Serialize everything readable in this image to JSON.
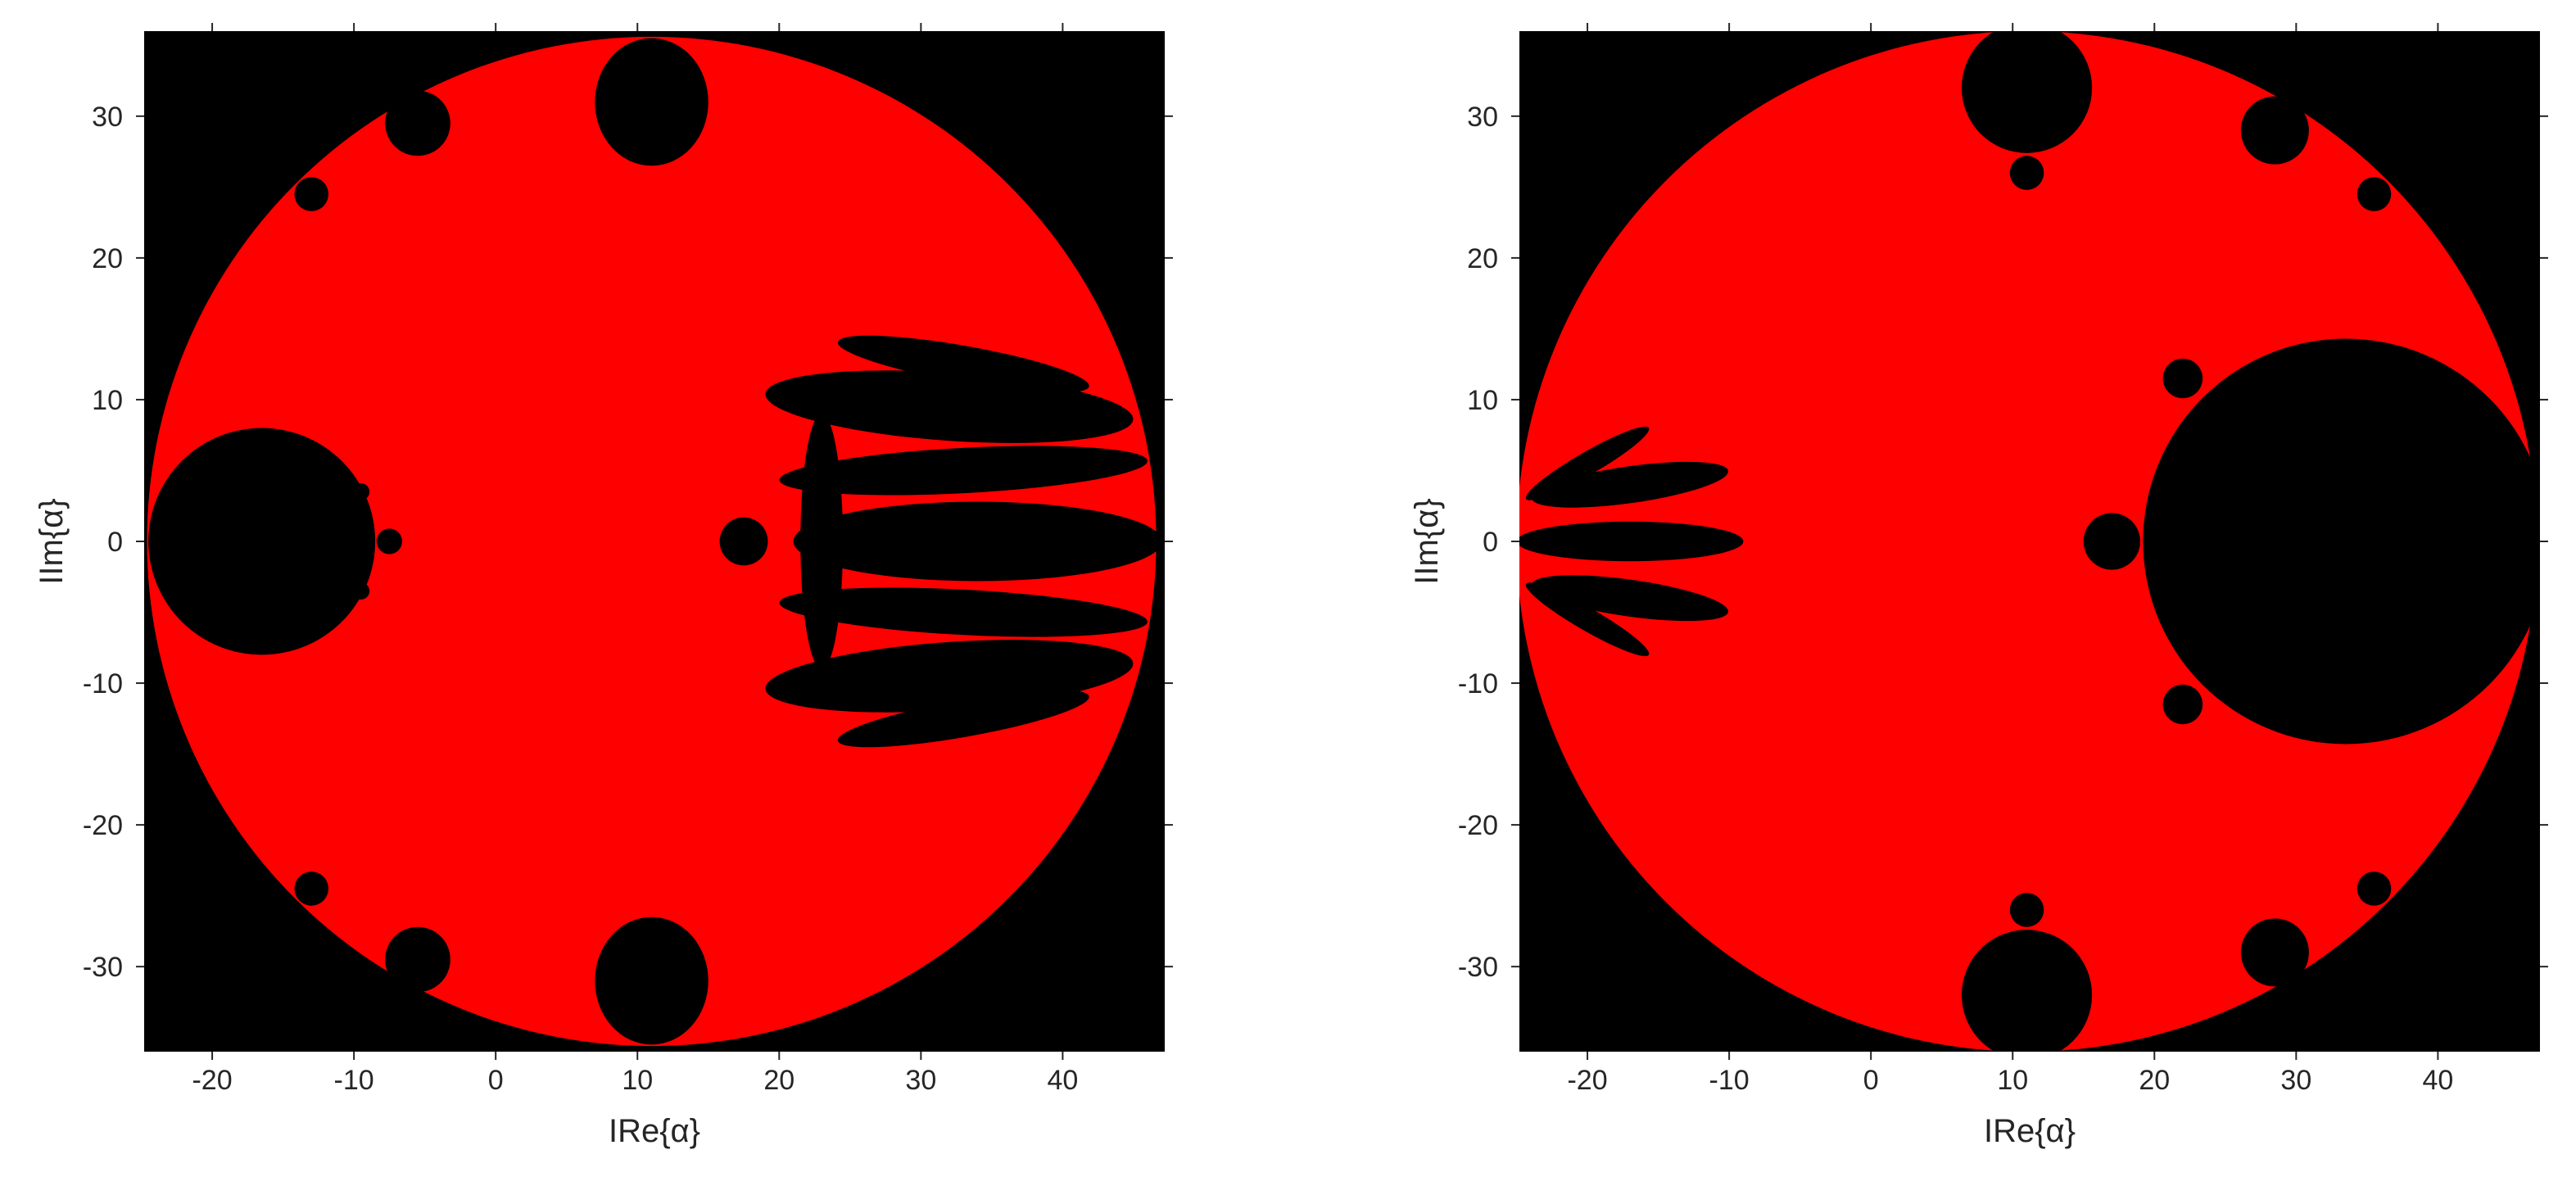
{
  "chart_data": [
    {
      "type": "image",
      "xlabel": "IRe{α}",
      "ylabel": "IIm{α}",
      "xlim": [
        -24.8,
        47.2
      ],
      "ylim": [
        -36,
        36
      ],
      "xticks": [
        -20,
        -10,
        0,
        10,
        20,
        30,
        40
      ],
      "yticks": [
        -30,
        -20,
        -10,
        0,
        10,
        20,
        30
      ]
    },
    {
      "type": "image",
      "xlabel": "IRe{α}",
      "ylabel": "IIm{α}",
      "xlim": [
        -24.8,
        47.2
      ],
      "ylim": [
        -36,
        36
      ],
      "xticks": [
        -20,
        -10,
        0,
        10,
        20,
        30,
        40
      ],
      "yticks": [
        -30,
        -20,
        -10,
        0,
        10,
        20,
        30
      ]
    }
  ]
}
